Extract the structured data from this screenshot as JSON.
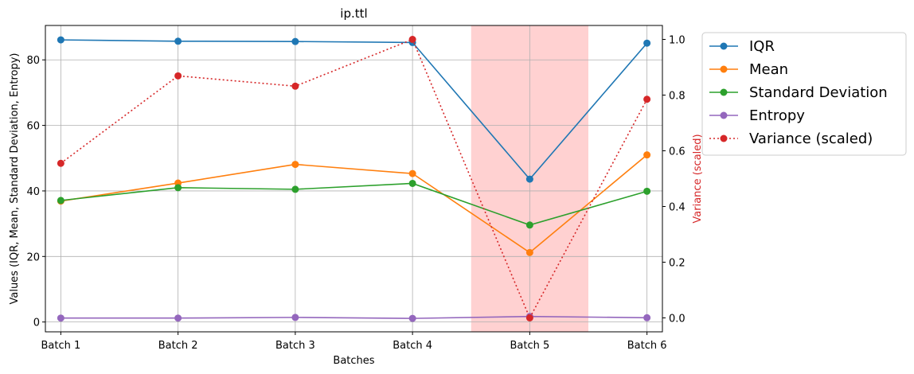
{
  "chart_data": {
    "type": "line",
    "title": "ip.ttl",
    "xlabel": "Batches",
    "ylabel": "Values (IQR, Mean, Standard Deviation, Entropy)",
    "ylabel_right": "Variance (scaled)",
    "categories": [
      "Batch 1",
      "Batch 2",
      "Batch 3",
      "Batch 4",
      "Batch 5",
      "Batch 6"
    ],
    "ylim": [
      -3,
      90.5
    ],
    "ylim_right": [
      -0.05,
      1.05
    ],
    "yticks": [
      0,
      20,
      40,
      60,
      80
    ],
    "yticks_right": [
      0.0,
      0.2,
      0.4,
      0.6,
      0.8,
      1.0
    ],
    "grid": true,
    "legend_position": "outside-right",
    "highlight": {
      "from_category": 4.5,
      "to_category": 5.5,
      "color": "#ffcccc"
    },
    "series": [
      {
        "name": "IQR",
        "color": "#1f77b4",
        "style": "solid",
        "axis": "left",
        "values": [
          86.1,
          85.7,
          85.6,
          85.3,
          43.6,
          85.1
        ]
      },
      {
        "name": "Mean",
        "color": "#ff7f0e",
        "style": "solid",
        "axis": "left",
        "values": [
          36.9,
          42.4,
          48.1,
          45.3,
          21.2,
          51.0
        ]
      },
      {
        "name": "Standard Deviation",
        "color": "#2ca02c",
        "style": "solid",
        "axis": "left",
        "values": [
          37.1,
          41.0,
          40.5,
          42.3,
          29.6,
          39.9
        ]
      },
      {
        "name": "Entropy",
        "color": "#9467bd",
        "style": "solid",
        "axis": "left",
        "values": [
          1.2,
          1.2,
          1.4,
          1.1,
          1.7,
          1.3
        ]
      },
      {
        "name": "Variance (scaled)",
        "color": "#d62728",
        "style": "dotted",
        "axis": "right",
        "values": [
          0.555,
          0.869,
          0.832,
          1.0,
          0.0,
          0.785
        ]
      }
    ]
  }
}
